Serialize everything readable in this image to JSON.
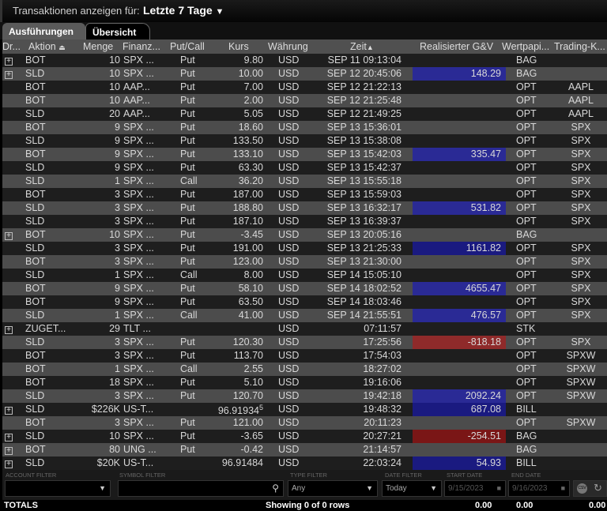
{
  "header": {
    "label": "Transaktionen anzeigen für:",
    "period": "Letzte 7 Tage"
  },
  "tabs": [
    {
      "label": "Ausführungen",
      "active": true
    },
    {
      "label": "Übersicht",
      "active": false
    }
  ],
  "columns": [
    "Dr...",
    "Aktion",
    "Menge",
    "Finanz...",
    "Put/Call",
    "Kurs",
    "Währung",
    "Zeit",
    "Realisierter G&V",
    "Wertpapi...",
    "Trading-K..."
  ],
  "sort": {
    "Aktion": "sort-icon",
    "Zeit": "ascending"
  },
  "colors": {
    "positive": "#2a2a95",
    "negative": "#8f2a2a",
    "row_dark": "#1e1e1e",
    "row_light": "#4c4c4c"
  },
  "rows": [
    [
      "+",
      "BOT",
      "10",
      "SPX ...",
      "Put",
      "9.80",
      "USD",
      "SEP 11 09:13:04",
      "",
      "BAG",
      ""
    ],
    [
      "+",
      "SLD",
      "10",
      "SPX ...",
      "Put",
      "10.00",
      "USD",
      "SEP 12 20:45:06",
      "148.29",
      "BAG",
      ""
    ],
    [
      "",
      "BOT",
      "10",
      "AAP...",
      "Put",
      "7.00",
      "USD",
      "SEP 12 21:22:13",
      "",
      "OPT",
      "AAPL"
    ],
    [
      "",
      "BOT",
      "10",
      "AAP...",
      "Put",
      "2.00",
      "USD",
      "SEP 12 21:25:48",
      "",
      "OPT",
      "AAPL"
    ],
    [
      "",
      "SLD",
      "20",
      "AAP...",
      "Put",
      "5.05",
      "USD",
      "SEP 12 21:49:25",
      "",
      "OPT",
      "AAPL"
    ],
    [
      "",
      "BOT",
      "9",
      "SPX ...",
      "Put",
      "18.60",
      "USD",
      "SEP 13 15:36:01",
      "",
      "OPT",
      "SPX"
    ],
    [
      "",
      "SLD",
      "9",
      "SPX ...",
      "Put",
      "133.50",
      "USD",
      "SEP 13 15:38:08",
      "",
      "OPT",
      "SPX"
    ],
    [
      "",
      "BOT",
      "9",
      "SPX ...",
      "Put",
      "133.10",
      "USD",
      "SEP 13 15:42:03",
      "335.47",
      "OPT",
      "SPX"
    ],
    [
      "",
      "SLD",
      "9",
      "SPX ...",
      "Put",
      "63.30",
      "USD",
      "SEP 13 15:42:37",
      "",
      "OPT",
      "SPX"
    ],
    [
      "",
      "SLD",
      "1",
      "SPX ...",
      "Call",
      "36.20",
      "USD",
      "SEP 13 15:55:18",
      "",
      "OPT",
      "SPX"
    ],
    [
      "",
      "BOT",
      "3",
      "SPX ...",
      "Put",
      "187.00",
      "USD",
      "SEP 13 15:59:03",
      "",
      "OPT",
      "SPX"
    ],
    [
      "",
      "SLD",
      "3",
      "SPX ...",
      "Put",
      "188.80",
      "USD",
      "SEP 13 16:32:17",
      "531.82",
      "OPT",
      "SPX"
    ],
    [
      "",
      "SLD",
      "3",
      "SPX ...",
      "Put",
      "187.10",
      "USD",
      "SEP 13 16:39:37",
      "",
      "OPT",
      "SPX"
    ],
    [
      "+",
      "BOT",
      "10",
      "SPX ...",
      "Put",
      "-3.45",
      "USD",
      "SEP 13 20:05:16",
      "",
      "BAG",
      ""
    ],
    [
      "",
      "SLD",
      "3",
      "SPX ...",
      "Put",
      "191.00",
      "USD",
      "SEP 13 21:25:33",
      "1161.82",
      "OPT",
      "SPX"
    ],
    [
      "",
      "BOT",
      "3",
      "SPX ...",
      "Put",
      "123.00",
      "USD",
      "SEP 13 21:30:00",
      "",
      "OPT",
      "SPX"
    ],
    [
      "",
      "SLD",
      "1",
      "SPX ...",
      "Call",
      "8.00",
      "USD",
      "SEP 14 15:05:10",
      "",
      "OPT",
      "SPX"
    ],
    [
      "",
      "BOT",
      "9",
      "SPX ...",
      "Put",
      "58.10",
      "USD",
      "SEP 14 18:02:52",
      "4655.47",
      "OPT",
      "SPX"
    ],
    [
      "",
      "BOT",
      "9",
      "SPX ...",
      "Put",
      "63.50",
      "USD",
      "SEP 14 18:03:46",
      "",
      "OPT",
      "SPX"
    ],
    [
      "",
      "SLD",
      "1",
      "SPX ...",
      "Call",
      "41.00",
      "USD",
      "SEP 14 21:55:51",
      "476.57",
      "OPT",
      "SPX"
    ],
    [
      "+",
      "ZUGET...",
      "29",
      "TLT ...",
      "",
      "",
      "USD",
      "07:11:57",
      "",
      "STK",
      ""
    ],
    [
      "",
      "SLD",
      "3",
      "SPX ...",
      "Put",
      "120.30",
      "USD",
      "17:25:56",
      "-818.18",
      "OPT",
      "SPX"
    ],
    [
      "",
      "BOT",
      "3",
      "SPX ...",
      "Put",
      "113.70",
      "USD",
      "17:54:03",
      "",
      "OPT",
      "SPXW"
    ],
    [
      "",
      "BOT",
      "1",
      "SPX ...",
      "Call",
      "2.55",
      "USD",
      "18:27:02",
      "",
      "OPT",
      "SPXW"
    ],
    [
      "",
      "BOT",
      "18",
      "SPX ...",
      "Put",
      "5.10",
      "USD",
      "19:16:06",
      "",
      "OPT",
      "SPXW"
    ],
    [
      "",
      "SLD",
      "3",
      "SPX ...",
      "Put",
      "120.70",
      "USD",
      "19:42:18",
      "2092.24",
      "OPT",
      "SPXW"
    ],
    [
      "+",
      "SLD",
      "$226K",
      "US-T...",
      "",
      "96.91934",
      "USD",
      "19:48:32",
      "687.08",
      "BILL",
      ""
    ],
    [
      "",
      "BOT",
      "3",
      "SPX ...",
      "Put",
      "121.00",
      "USD",
      "20:11:23",
      "",
      "OPT",
      "SPXW"
    ],
    [
      "+",
      "SLD",
      "10",
      "SPX ...",
      "Put",
      "-3.65",
      "USD",
      "20:27:21",
      "-254.51",
      "BAG",
      ""
    ],
    [
      "+",
      "BOT",
      "80",
      "UNG ...",
      "Put",
      "-0.42",
      "USD",
      "21:14:57",
      "",
      "BAG",
      ""
    ],
    [
      "+",
      "SLD",
      "$20K",
      "US-T...",
      "",
      "96.91484",
      "USD",
      "22:03:24",
      "54.93",
      "BILL",
      ""
    ]
  ],
  "kurs_superscript": {
    "26": "5"
  },
  "filters": {
    "account_label": "ACCOUNT FILTER",
    "account_value": "",
    "symbol_label": "SYMBOL FILTER",
    "symbol_value": "",
    "type_label": "TYPE FILTER",
    "type_value": "Any",
    "date_label": "DATE FILTER",
    "date_value": "Today",
    "start_label": "START DATE",
    "start_value": "9/15/2023",
    "end_label": "END DATE",
    "end_value": "9/16/2023"
  },
  "totals": {
    "label": "TOTALS",
    "showing": "Showing 0 of 0 rows",
    "v1": "0.00",
    "v2": "0.00",
    "v3": "0.00"
  }
}
